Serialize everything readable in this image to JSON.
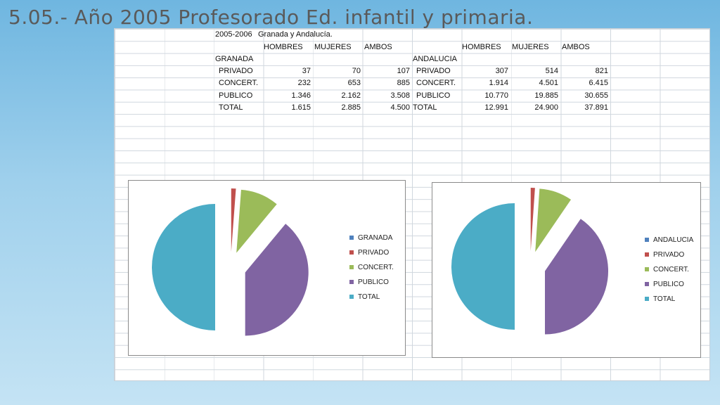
{
  "title": "5.05.- Año 2005  Profesorado Ed. infantil y primaria.",
  "table": {
    "period": "2005-2006",
    "region_label": "Granada y Andalucía.",
    "headers": [
      "HOMBRES",
      "MUJERES",
      "AMBOS"
    ],
    "left": {
      "name": "GRANADA",
      "rows": [
        {
          "label": "PRIVADO",
          "hombres": "37",
          "mujeres": "70",
          "ambos": "107"
        },
        {
          "label": "CONCERT.",
          "hombres": "232",
          "mujeres": "653",
          "ambos": "885"
        },
        {
          "label": "PUBLICO",
          "hombres": "1.346",
          "mujeres": "2.162",
          "ambos": "3.508"
        },
        {
          "label": "TOTAL",
          "hombres": "1.615",
          "mujeres": "2.885",
          "ambos": "4.500"
        }
      ]
    },
    "right": {
      "name": "ANDALUCIA",
      "rows": [
        {
          "label": "PRIVADO",
          "hombres": "307",
          "mujeres": "514",
          "ambos": "821"
        },
        {
          "label": "CONCERT.",
          "hombres": "1.914",
          "mujeres": "4.501",
          "ambos": "6.415"
        },
        {
          "label": "PUBLICO",
          "hombres": "10.770",
          "mujeres": "19.885",
          "ambos": "30.655"
        },
        {
          "label": "TOTAL",
          "hombres": "12.991",
          "mujeres": "24.900",
          "ambos": "37.891"
        }
      ]
    }
  },
  "colors": {
    "granada": "#4f81bd",
    "privado": "#c0504d",
    "concert": "#9bbb59",
    "publico": "#8064a2",
    "total": "#4bacc6"
  },
  "chart_data": [
    {
      "type": "pie",
      "legend": [
        "GRANADA",
        "PRIVADO",
        "CONCERT.",
        "PUBLICO",
        "TOTAL"
      ],
      "categories": [
        "PRIVADO",
        "CONCERT.",
        "PUBLICO",
        "TOTAL"
      ],
      "values": [
        107,
        885,
        3508,
        4500
      ],
      "legend_position": "right"
    },
    {
      "type": "pie",
      "legend": [
        "ANDALUCIA",
        "PRIVADO",
        "CONCERT.",
        "PUBLICO",
        "TOTAL"
      ],
      "categories": [
        "PRIVADO",
        "CONCERT.",
        "PUBLICO",
        "TOTAL"
      ],
      "values": [
        821,
        6415,
        30655,
        37891
      ],
      "legend_position": "right"
    }
  ]
}
